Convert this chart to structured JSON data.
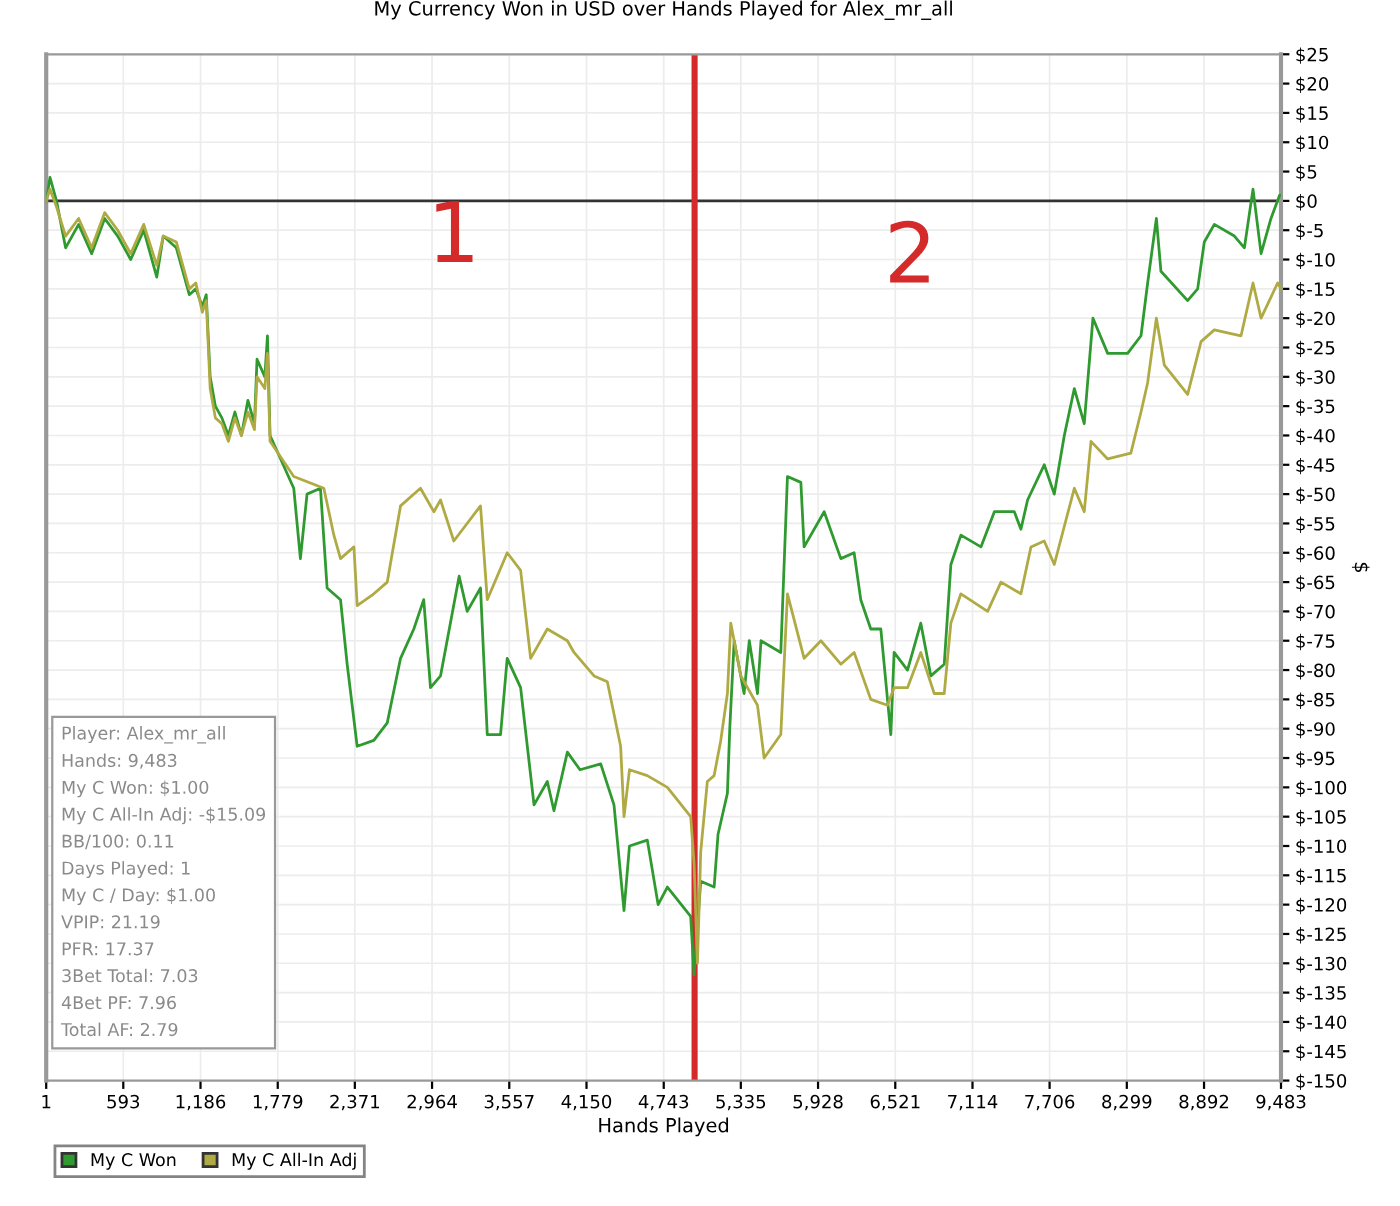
{
  "chart_data": {
    "type": "line",
    "title": "My Currency Won in USD over Hands Played for Alex_mr_all",
    "xlabel": "Hands Played",
    "ylabel": "$",
    "xlim": [
      1,
      9483
    ],
    "xticks": [
      1,
      593,
      {
        "value": 1186,
        "label": "1,186"
      },
      {
        "value": 1779,
        "label": "1,779"
      },
      {
        "value": 2371,
        "label": "2,371"
      },
      {
        "value": 2964,
        "label": "2,964"
      },
      {
        "value": 3557,
        "label": "3,557"
      },
      {
        "value": 4150,
        "label": "4,150"
      },
      {
        "value": 4743,
        "label": "4,743"
      },
      {
        "value": 5335,
        "label": "5,335"
      },
      {
        "value": 5928,
        "label": "5,928"
      },
      {
        "value": 6521,
        "label": "6,521"
      },
      {
        "value": 7114,
        "label": "7,114"
      },
      {
        "value": 7706,
        "label": "7,706"
      },
      {
        "value": 8299,
        "label": "8,299"
      },
      {
        "value": 8892,
        "label": "8,892"
      },
      {
        "value": 9483,
        "label": "9,483"
      }
    ],
    "ylim": [
      -150,
      25
    ],
    "yticks": [
      {
        "value": 25,
        "label": "$25"
      },
      {
        "value": 20,
        "label": "$20"
      },
      {
        "value": 15,
        "label": "$15"
      },
      {
        "value": 10,
        "label": "$10"
      },
      {
        "value": 5,
        "label": "$5"
      },
      {
        "value": 0,
        "label": "$0"
      },
      {
        "value": -5,
        "label": "$-5"
      },
      {
        "value": -10,
        "label": "$-10"
      },
      {
        "value": -15,
        "label": "$-15"
      },
      {
        "value": -20,
        "label": "$-20"
      },
      {
        "value": -25,
        "label": "$-25"
      },
      {
        "value": -30,
        "label": "$-30"
      },
      {
        "value": -35,
        "label": "$-35"
      },
      {
        "value": -40,
        "label": "$-40"
      },
      {
        "value": -45,
        "label": "$-45"
      },
      {
        "value": -50,
        "label": "$-50"
      },
      {
        "value": -55,
        "label": "$-55"
      },
      {
        "value": -60,
        "label": "$-60"
      },
      {
        "value": -65,
        "label": "$-65"
      },
      {
        "value": -70,
        "label": "$-70"
      },
      {
        "value": -75,
        "label": "$-75"
      },
      {
        "value": -80,
        "label": "$-80"
      },
      {
        "value": -85,
        "label": "$-85"
      },
      {
        "value": -90,
        "label": "$-90"
      },
      {
        "value": -95,
        "label": "$-95"
      },
      {
        "value": -100,
        "label": "$-100"
      },
      {
        "value": -105,
        "label": "$-105"
      },
      {
        "value": -110,
        "label": "$-110"
      },
      {
        "value": -115,
        "label": "$-115"
      },
      {
        "value": -120,
        "label": "$-120"
      },
      {
        "value": -125,
        "label": "$-125"
      },
      {
        "value": -130,
        "label": "$-130"
      },
      {
        "value": -135,
        "label": "$-135"
      },
      {
        "value": -140,
        "label": "$-140"
      },
      {
        "value": -145,
        "label": "$-145"
      },
      {
        "value": -150,
        "label": "$-150"
      }
    ],
    "grid": true,
    "legend": "bottom left",
    "series": [
      {
        "name": "My C Won",
        "color": "#2f9a2f",
        "x": [
          1,
          30,
          80,
          150,
          250,
          350,
          450,
          550,
          650,
          750,
          850,
          900,
          1000,
          1100,
          1150,
          1200,
          1230,
          1260,
          1300,
          1350,
          1400,
          1450,
          1500,
          1550,
          1600,
          1620,
          1680,
          1700,
          1720,
          1902,
          1953,
          2004,
          2107,
          2158,
          2261,
          2312,
          2389,
          2517,
          2620,
          2722,
          2824,
          2900,
          2952,
          3029,
          3172,
          3234,
          3336,
          3388,
          3490,
          3541,
          3644,
          3747,
          3849,
          3900,
          4003,
          4100,
          4259,
          4361,
          4438,
          4480,
          4617,
          4700,
          4771,
          4950,
          4976,
          5027,
          5130,
          5160,
          5232,
          5250,
          5284,
          5360,
          5400,
          5463,
          5490,
          5642,
          5693,
          5796,
          5821,
          5975,
          6103,
          6205,
          6256,
          6333,
          6410,
          6487,
          6512,
          6615,
          6717,
          6794,
          6897,
          6948,
          7025,
          7179,
          7282,
          7435,
          7486,
          7537,
          7665,
          7742,
          7819,
          7896,
          7972,
          8039,
          8152,
          8305,
          8408,
          8459,
          8526,
          8561,
          8766,
          8843,
          8894,
          8971,
          9125,
          9202,
          9268,
          9330,
          9406,
          9473,
          9483
        ],
        "values": [
          0,
          4,
          0,
          -8,
          -4,
          -9,
          -3,
          -6,
          -10,
          -5,
          -13,
          -6,
          -8,
          -16,
          -15,
          -18,
          -16,
          -30,
          -35,
          -37,
          -40,
          -36,
          -40,
          -34,
          -38,
          -27,
          -30,
          -23,
          -40,
          -49,
          -61,
          -50,
          -49,
          -66,
          -68,
          -79,
          -93,
          -92,
          -89,
          -78,
          -73,
          -68,
          -83,
          -81,
          -64,
          -70,
          -66,
          -91,
          -91,
          -78,
          -83,
          -103,
          -99,
          -104,
          -94,
          -97,
          -96,
          -103,
          -121,
          -110,
          -109,
          -120,
          -117,
          -122,
          -132,
          -116,
          -117,
          -108,
          -101,
          -90,
          -75,
          -84,
          -75,
          -84,
          -75,
          -77,
          -47,
          -48,
          -59,
          -53,
          -61,
          -60,
          -68,
          -73,
          -73,
          -91,
          -77,
          -80,
          -72,
          -81,
          -79,
          -62,
          -57,
          -59,
          -53,
          -53,
          -56,
          -51,
          -45,
          -50,
          -40,
          -32,
          -38,
          -20,
          -26,
          -26,
          -23,
          -14,
          -3,
          -12,
          -17,
          -15,
          -7,
          -4,
          -6,
          -8,
          2,
          -9,
          -3,
          1,
          1
        ]
      },
      {
        "name": "My C All-In Adj",
        "color": "#b0aa45",
        "x": [
          1,
          30,
          80,
          150,
          250,
          350,
          450,
          550,
          650,
          750,
          850,
          900,
          1000,
          1100,
          1150,
          1200,
          1230,
          1260,
          1300,
          1350,
          1400,
          1450,
          1500,
          1550,
          1600,
          1620,
          1680,
          1700,
          1720,
          1902,
          2133,
          2210,
          2261,
          2364,
          2389,
          2517,
          2620,
          2722,
          2875,
          2978,
          3029,
          3131,
          3336,
          3388,
          3541,
          3644,
          3721,
          3849,
          4003,
          4054,
          4208,
          4310,
          4412,
          4438,
          4480,
          4617,
          4771,
          4950,
          4976,
          5002,
          5027,
          5078,
          5130,
          5181,
          5232,
          5258,
          5335,
          5463,
          5514,
          5642,
          5693,
          5821,
          5950,
          6103,
          6205,
          6333,
          6461,
          6512,
          6615,
          6717,
          6820,
          6897,
          6948,
          7025,
          7230,
          7333,
          7486,
          7563,
          7665,
          7742,
          7896,
          7972,
          8024,
          8152,
          8330,
          8408,
          8459,
          8526,
          8587,
          8766,
          8869,
          8971,
          9176,
          9268,
          9330,
          9457,
          9483
        ],
        "values": [
          0,
          2,
          -1,
          -6,
          -3,
          -8,
          -2,
          -5,
          -9,
          -4,
          -11,
          -6,
          -7,
          -15,
          -14,
          -19,
          -17,
          -32,
          -37,
          -38,
          -41,
          -37,
          -40,
          -36,
          -39,
          -30,
          -32,
          -26,
          -41,
          -47,
          -49,
          -57,
          -61,
          -59,
          -69,
          -67,
          -65,
          -52,
          -49,
          -53,
          -51,
          -58,
          -52,
          -68,
          -60,
          -63,
          -78,
          -73,
          -75,
          -77,
          -81,
          -82,
          -93,
          -105,
          -97,
          -98,
          -100,
          -105,
          -113,
          -130,
          -111,
          -99,
          -98,
          -92,
          -84,
          -72,
          -81,
          -86,
          -95,
          -91,
          -67,
          -78,
          -75,
          -79,
          -77,
          -85,
          -86,
          -83,
          -83,
          -77,
          -84,
          -84,
          -72,
          -67,
          -70,
          -65,
          -67,
          -59,
          -58,
          -62,
          -49,
          -53,
          -41,
          -44,
          -43,
          -36,
          -31,
          -20,
          -28,
          -33,
          -24,
          -22,
          -23,
          -14,
          -20,
          -14,
          -15
        ]
      }
    ],
    "ref_lines": [
      {
        "axis": "y",
        "value": 0,
        "color": "#333333"
      },
      {
        "axis": "x",
        "value": 4980,
        "color": "#d42a2a"
      }
    ],
    "annotations": [
      "Player: Alex_mr_all",
      "Hands: 9,483",
      "My C Won: $1.00",
      "My C All-In Adj: -$15.09",
      "BB/100: 0.11",
      "Days Played: 1",
      "My C / Day: $1.00",
      "VPIP: 21.19",
      "PFR: 17.37",
      "3Bet Total: 7.03",
      "4Bet PF: 7.96",
      "Total AF: 2.79",
      "1",
      "2"
    ]
  }
}
